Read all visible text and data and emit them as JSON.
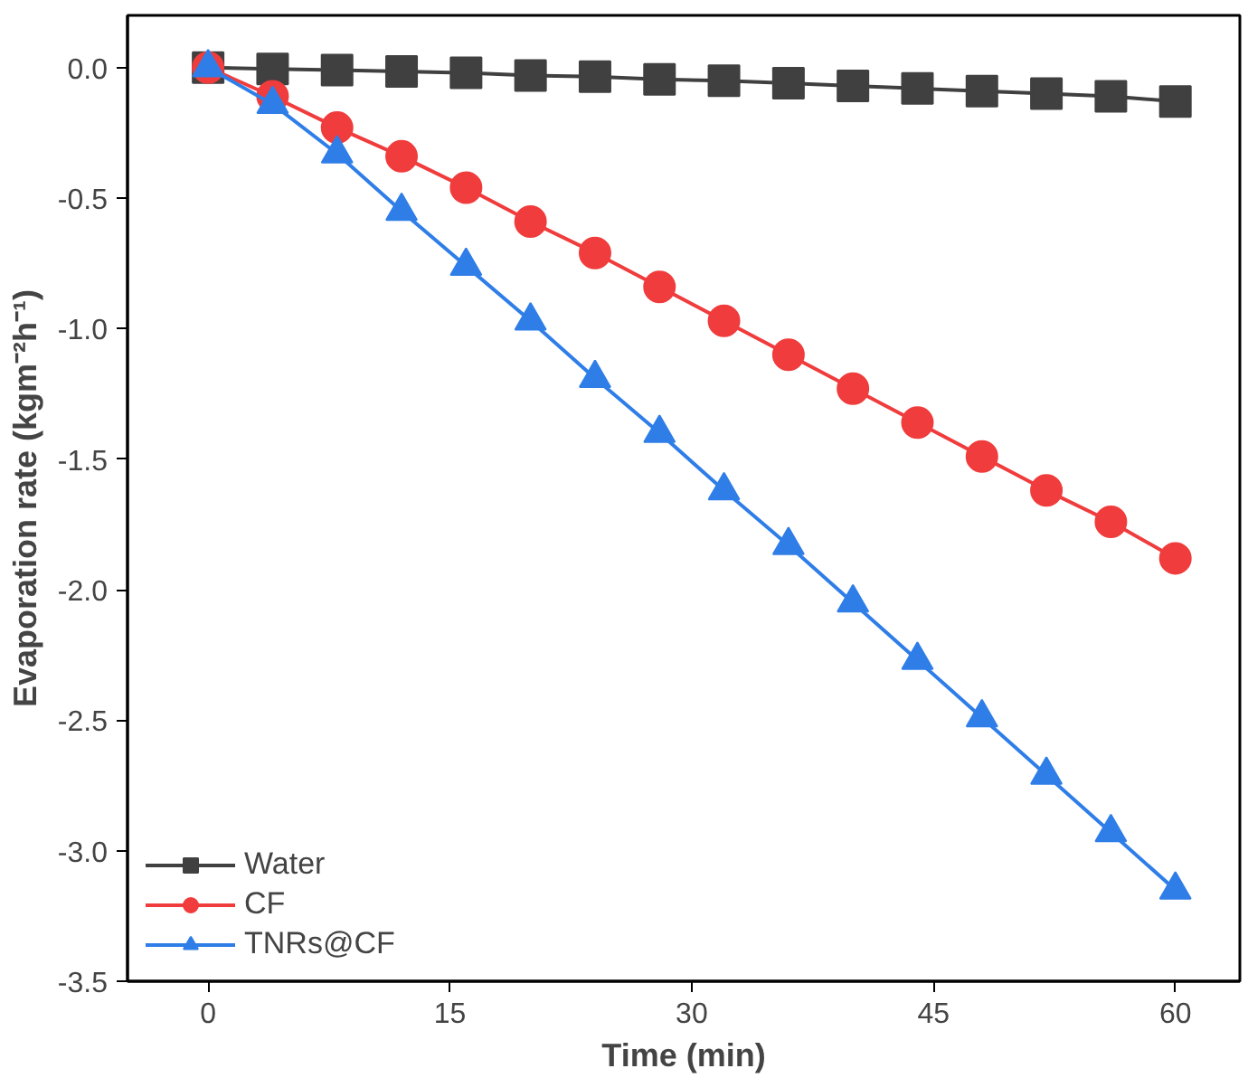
{
  "chart_data": {
    "type": "line",
    "xlabel": "Time (min)",
    "ylabel": "Evaporation rate (kgm⁻²h⁻¹)",
    "x": [
      0,
      4,
      8,
      12,
      16,
      20,
      24,
      28,
      32,
      36,
      40,
      44,
      48,
      52,
      56,
      60
    ],
    "series": [
      {
        "name": "Water",
        "color": "#404040",
        "marker": "square",
        "values": [
          0,
          -0.005,
          -0.01,
          -0.015,
          -0.02,
          -0.03,
          -0.035,
          -0.045,
          -0.05,
          -0.06,
          -0.07,
          -0.08,
          -0.09,
          -0.1,
          -0.11,
          -0.13
        ]
      },
      {
        "name": "CF",
        "color": "#f03c3c",
        "marker": "circle",
        "values": [
          0,
          -0.11,
          -0.23,
          -0.34,
          -0.46,
          -0.59,
          -0.71,
          -0.84,
          -0.97,
          -1.1,
          -1.23,
          -1.36,
          -1.49,
          -1.62,
          -1.74,
          -1.88
        ]
      },
      {
        "name": "TNRs@CF",
        "color": "#2f7ee8",
        "marker": "triangle",
        "values": [
          0,
          -0.14,
          -0.33,
          -0.55,
          -0.76,
          -0.97,
          -1.19,
          -1.4,
          -1.62,
          -1.83,
          -2.05,
          -2.27,
          -2.49,
          -2.71,
          -2.93,
          -3.15
        ]
      }
    ],
    "xlim": [
      -5,
      64
    ],
    "xticks": [
      0,
      15,
      30,
      45,
      60
    ],
    "ylim": [
      -3.5,
      0.2
    ],
    "yticks": [
      {
        "value": 0,
        "label": "0.0"
      },
      {
        "value": -0.5,
        "label": "-0.5"
      },
      {
        "value": -1,
        "label": "-1.0"
      },
      {
        "value": -1.5,
        "label": "-1.5"
      },
      {
        "value": -2,
        "label": "-2.0"
      },
      {
        "value": -2.5,
        "label": "-2.5"
      },
      {
        "value": -3,
        "label": "-3.0"
      },
      {
        "value": -3.5,
        "label": "-3.5"
      }
    ],
    "grid": false,
    "legend": "bottom left",
    "line_style": "solid"
  }
}
